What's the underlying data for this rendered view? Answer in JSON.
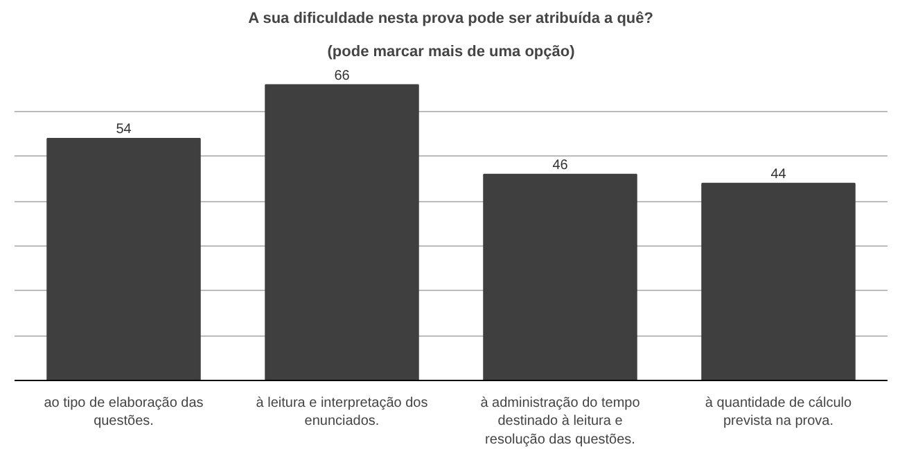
{
  "chart_data": {
    "type": "bar",
    "title": "A sua dificuldade nesta prova pode ser atribuída a quê?",
    "subtitle": "(pode marcar mais de uma opção)",
    "categories": [
      "ao tipo de elaboração das\nquestões.",
      "à leitura e interpretação dos\nenunciados.",
      "à administração do tempo\ndestinado à leitura e\nresolução das questões.",
      "à quantidade de cálculo\nprevista na prova."
    ],
    "values": [
      54,
      66,
      46,
      44
    ],
    "color": "#3f3f3f",
    "data_labels": true,
    "grid": "y",
    "tick_labels": "x"
  }
}
